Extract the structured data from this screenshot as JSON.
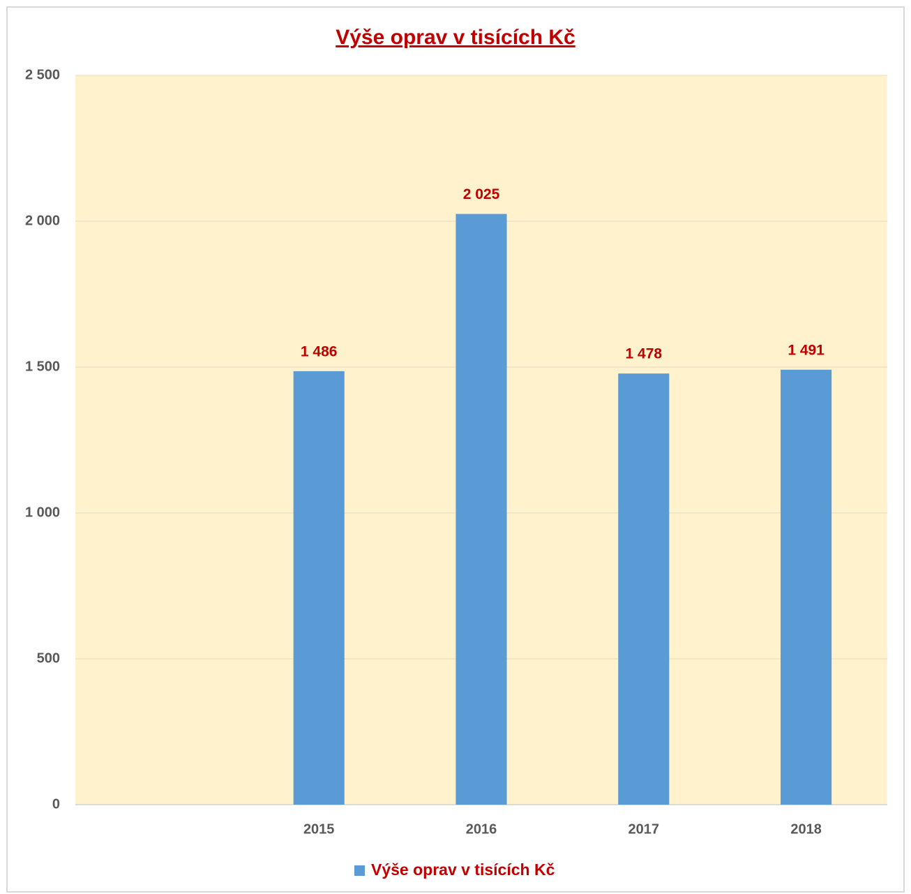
{
  "chart_data": {
    "type": "bar",
    "title": "Výše oprav v tisících Kč",
    "categories": [
      null,
      "2015",
      "2016",
      "2017",
      "2018"
    ],
    "series": [
      {
        "name": "Výše oprav v tisících Kč",
        "color": "#5b9bd5",
        "values": [
          null,
          1486,
          2025,
          1478,
          1491
        ],
        "value_labels": [
          null,
          "1 486",
          "2 025",
          "1 478",
          "1 491"
        ]
      }
    ],
    "ylim": [
      0,
      2500
    ],
    "yticks": [
      0,
      500,
      {
        "value": 1000,
        "label": "1 000"
      },
      {
        "value": 1500,
        "label": "1 500"
      },
      {
        "value": 2000,
        "label": "2 000"
      },
      {
        "value": 2500,
        "label": "2 500"
      }
    ],
    "grid": true,
    "plot_background": "#fff2cc",
    "legend": "bottom"
  }
}
